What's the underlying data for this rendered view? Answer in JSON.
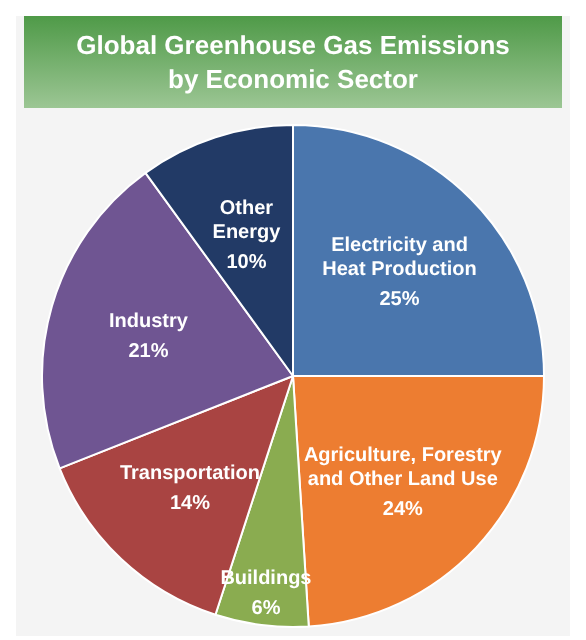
{
  "chart_data": {
    "type": "pie",
    "title": "Global Greenhouse Gas Emissions\nby Economic Sector",
    "categories": [
      "Electricity and Heat Production",
      "Agriculture, Forestry and Other Land Use",
      "Buildings",
      "Transportation",
      "Industry",
      "Other Energy"
    ],
    "values": [
      25,
      24,
      6,
      14,
      21,
      10
    ],
    "value_labels": [
      "25%",
      "24%",
      "6%",
      "14%",
      "21%",
      "10%"
    ],
    "colors": [
      "#4a76ad",
      "#ed7d31",
      "#8aac50",
      "#a94442",
      "#6f5592",
      "#223a66"
    ],
    "legend": false
  }
}
